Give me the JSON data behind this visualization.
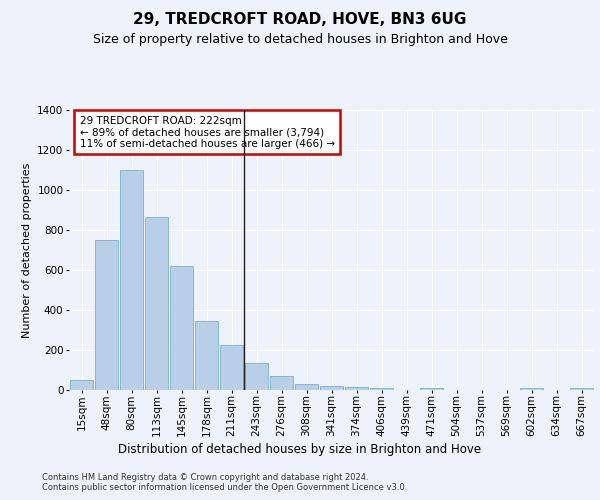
{
  "title": "29, TREDCROFT ROAD, HOVE, BN3 6UG",
  "subtitle": "Size of property relative to detached houses in Brighton and Hove",
  "xlabel": "Distribution of detached houses by size in Brighton and Hove",
  "ylabel": "Number of detached properties",
  "categories": [
    "15sqm",
    "48sqm",
    "80sqm",
    "113sqm",
    "145sqm",
    "178sqm",
    "211sqm",
    "243sqm",
    "276sqm",
    "308sqm",
    "341sqm",
    "374sqm",
    "406sqm",
    "439sqm",
    "471sqm",
    "504sqm",
    "537sqm",
    "569sqm",
    "602sqm",
    "634sqm",
    "667sqm"
  ],
  "bar_heights": [
    50,
    750,
    1100,
    865,
    620,
    345,
    225,
    135,
    68,
    30,
    20,
    15,
    10,
    0,
    10,
    0,
    0,
    0,
    10,
    0,
    10
  ],
  "highlight_bar_index": 6,
  "bar_color": "#b8cfe8",
  "bar_edge_color": "#7aafd4",
  "background_color": "#eef2fb",
  "grid_color": "#ffffff",
  "annotation_text": "29 TREDCROFT ROAD: 222sqm\n← 89% of detached houses are smaller (3,794)\n11% of semi-detached houses are larger (466) →",
  "annotation_box_color": "#ffffff",
  "annotation_box_edge": "#cc0000",
  "footer": "Contains HM Land Registry data © Crown copyright and database right 2024.\nContains public sector information licensed under the Open Government Licence v3.0.",
  "ylim": [
    0,
    1400
  ],
  "yticks": [
    0,
    200,
    400,
    600,
    800,
    1000,
    1200,
    1400
  ],
  "title_fontsize": 11,
  "subtitle_fontsize": 9,
  "ylabel_fontsize": 8,
  "tick_fontsize": 7.5,
  "xlabel_fontsize": 8.5
}
